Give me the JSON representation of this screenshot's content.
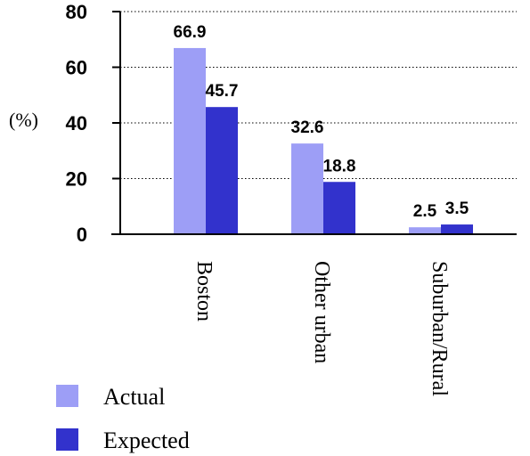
{
  "chart_data": {
    "type": "bar",
    "title": "",
    "xlabel": "",
    "ylabel": "(%)",
    "categories": [
      "Boston",
      "Other urban",
      "Suburban/Rural"
    ],
    "series": [
      {
        "name": "Actual",
        "values": [
          66.9,
          32.6,
          2.5
        ],
        "color": "#9d9ef6"
      },
      {
        "name": "Expected",
        "values": [
          45.7,
          18.8,
          3.5
        ],
        "color": "#3232cc"
      }
    ],
    "ylim": [
      0,
      80
    ],
    "yticks": [
      0,
      20,
      40,
      60,
      80
    ],
    "grid": "dotted horizontal",
    "legend": "bottom-left"
  }
}
